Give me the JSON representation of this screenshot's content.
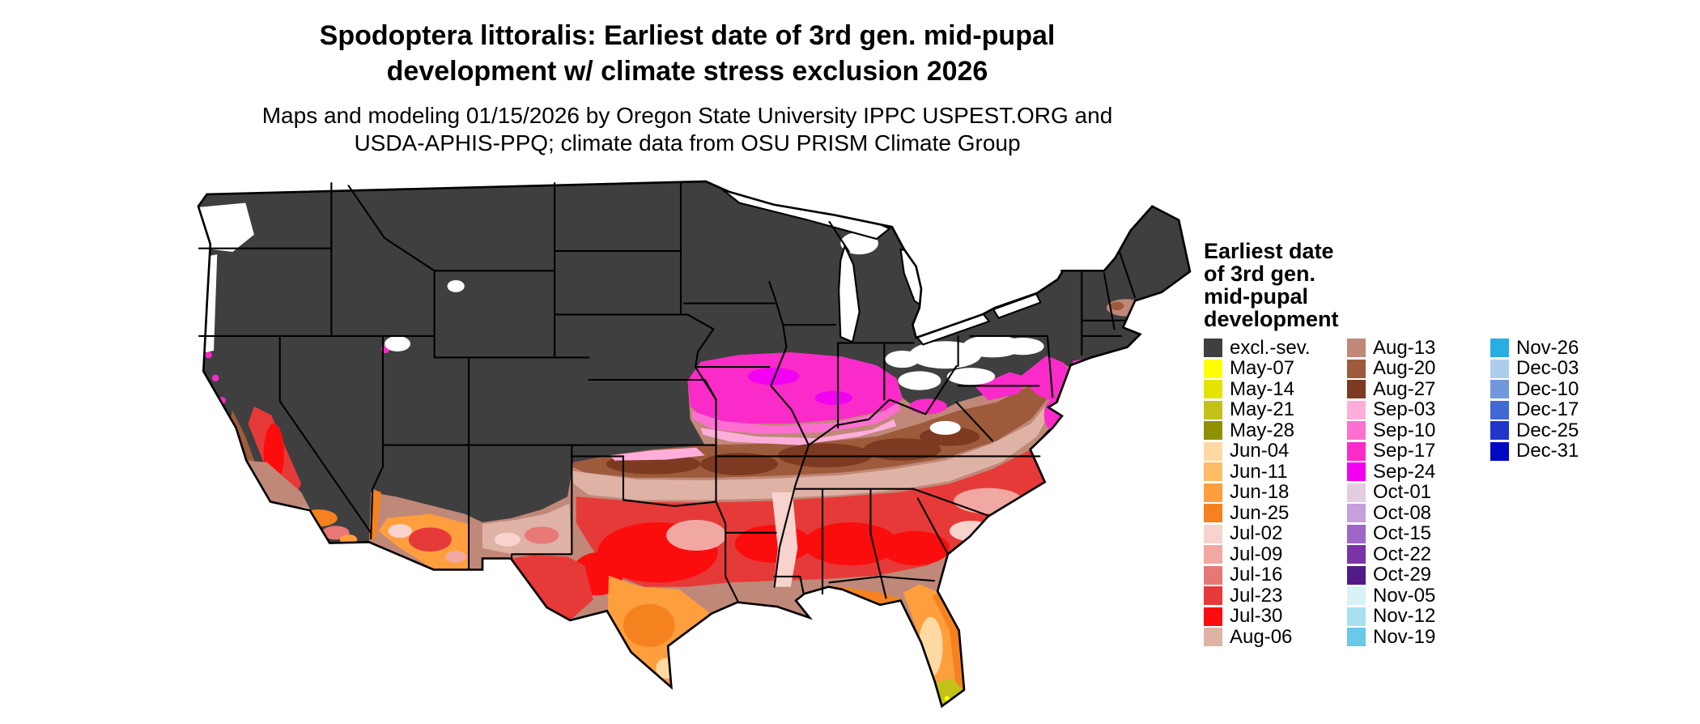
{
  "title": {
    "line1": "Spodoptera littoralis: Earliest date of 3rd gen. mid-pupal",
    "line2": "development w/ climate stress exclusion 2026"
  },
  "subtitle": {
    "line1": "Maps and modeling 01/15/2026 by Oregon State University IPPC USPEST.ORG and",
    "line2": "USDA-APHIS-PPQ; climate data from OSU PRISM Climate Group"
  },
  "legend": {
    "title_lines": [
      "Earliest date",
      "of 3rd gen.",
      "mid-pupal",
      "development"
    ],
    "columns": [
      [
        {
          "label": "excl.-sev.",
          "color": "#3F3F3F"
        },
        {
          "label": "May-07",
          "color": "#FFFF00"
        },
        {
          "label": "May-14",
          "color": "#E4E400"
        },
        {
          "label": "May-21",
          "color": "#C2C21A"
        },
        {
          "label": "May-28",
          "color": "#8F9100"
        },
        {
          "label": "Jun-04",
          "color": "#FFD8A2"
        },
        {
          "label": "Jun-11",
          "color": "#FFBB66"
        },
        {
          "label": "Jun-18",
          "color": "#FF9E3D"
        },
        {
          "label": "Jun-25",
          "color": "#F5821F"
        },
        {
          "label": "Jul-02",
          "color": "#F8D3CE"
        },
        {
          "label": "Jul-09",
          "color": "#F2A8A2"
        },
        {
          "label": "Jul-16",
          "color": "#E87876"
        },
        {
          "label": "Jul-23",
          "color": "#E63A38"
        },
        {
          "label": "Jul-30",
          "color": "#FB0D0D"
        },
        {
          "label": "Aug-06",
          "color": "#DFB2A6"
        }
      ],
      [
        {
          "label": "Aug-13",
          "color": "#C08878"
        },
        {
          "label": "Aug-20",
          "color": "#9E5B3C"
        },
        {
          "label": "Aug-27",
          "color": "#7E3A20"
        },
        {
          "label": "Sep-03",
          "color": "#FFAEDC"
        },
        {
          "label": "Sep-10",
          "color": "#FF6FD2"
        },
        {
          "label": "Sep-17",
          "color": "#FA2BC8"
        },
        {
          "label": "Sep-24",
          "color": "#F200F2"
        },
        {
          "label": "Oct-01",
          "color": "#E3CDE3"
        },
        {
          "label": "Oct-08",
          "color": "#C5A0DC"
        },
        {
          "label": "Oct-15",
          "color": "#9D66C8"
        },
        {
          "label": "Oct-22",
          "color": "#7B34A8"
        },
        {
          "label": "Oct-29",
          "color": "#521A86"
        },
        {
          "label": "Nov-05",
          "color": "#D8F2F8"
        },
        {
          "label": "Nov-12",
          "color": "#A8E0F0"
        },
        {
          "label": "Nov-19",
          "color": "#6AC8E8"
        }
      ],
      [
        {
          "label": "Nov-26",
          "color": "#28AEE2"
        },
        {
          "label": "Dec-03",
          "color": "#AECCEE"
        },
        {
          "label": "Dec-10",
          "color": "#7098DE"
        },
        {
          "label": "Dec-17",
          "color": "#4169D4"
        },
        {
          "label": "Dec-25",
          "color": "#2136CA"
        },
        {
          "label": "Dec-31",
          "color": "#0008C2"
        }
      ]
    ]
  },
  "map": {
    "region_name": "Contiguous United States",
    "no_data_color": "#FFFFFF",
    "border_color": "#000000"
  }
}
